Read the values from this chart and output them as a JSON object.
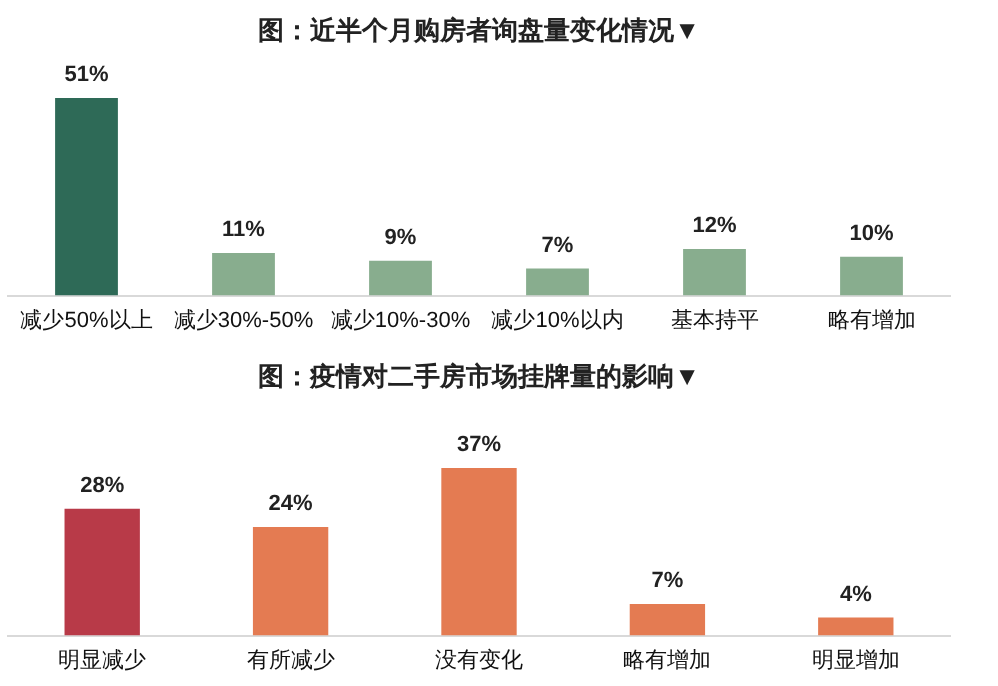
{
  "chart_data": [
    {
      "type": "bar",
      "title": "图：近半个月购房者询盘量变化情况▼",
      "categories": [
        "减少50%以上",
        "减少30%-50%",
        "减少10%-30%",
        "减少10%以内",
        "基本持平",
        "略有增加"
      ],
      "values": [
        51,
        11,
        9,
        7,
        12,
        10
      ],
      "value_labels": [
        "51%",
        "11%",
        "9%",
        "7%",
        "12%",
        "10%"
      ],
      "colors": [
        "#2e6a57",
        "#88ad8e",
        "#88ad8e",
        "#88ad8e",
        "#88ad8e",
        "#88ad8e"
      ],
      "grid": false,
      "legend": false
    },
    {
      "type": "bar",
      "title": "图：疫情对二手房市场挂牌量的影响▼",
      "categories": [
        "明显减少",
        "有所减少",
        "没有变化",
        "略有增加",
        "明显增加"
      ],
      "values": [
        28,
        24,
        37,
        7,
        4
      ],
      "value_labels": [
        "28%",
        "24%",
        "37%",
        "7%",
        "4%"
      ],
      "colors": [
        "#b83a48",
        "#e47b52",
        "#e47b52",
        "#e47b52",
        "#e47b52"
      ],
      "grid": false,
      "legend": false
    }
  ]
}
